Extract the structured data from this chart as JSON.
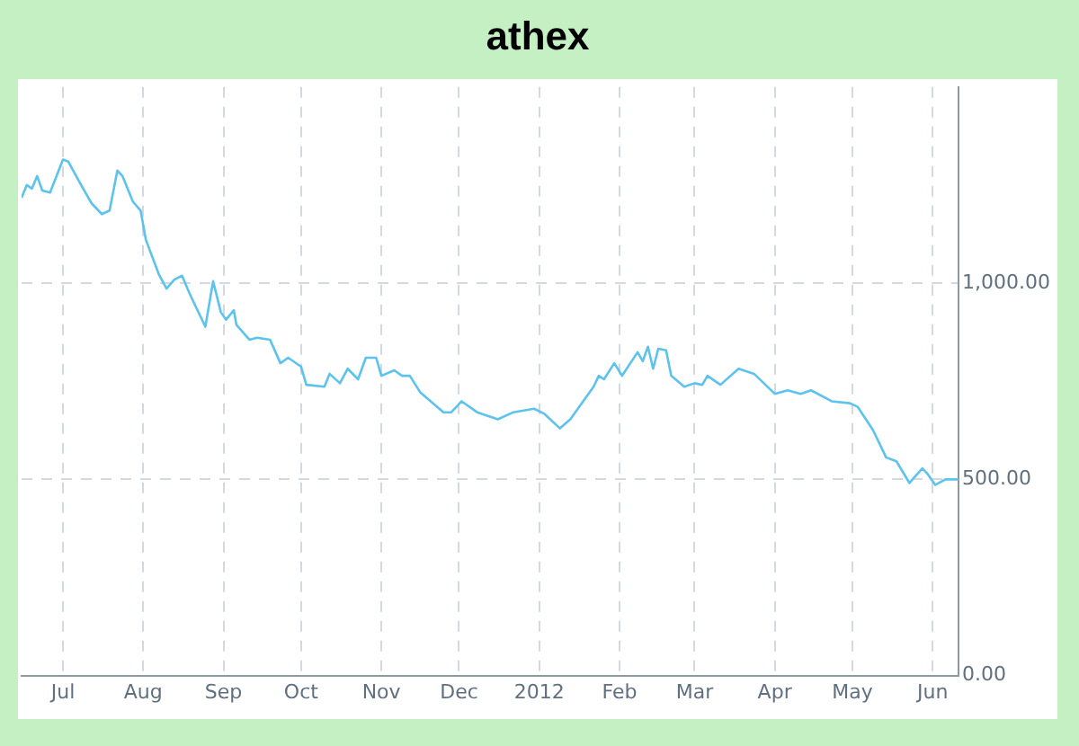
{
  "chart_data": {
    "type": "line",
    "title": "athex",
    "grid": true,
    "legend": false,
    "marker": "none",
    "line_style": "solid",
    "xlim": [
      "2011-06-15",
      "2012-06-11"
    ],
    "xticks": [
      {
        "value": "2011-07-01",
        "label": "Jul"
      },
      {
        "value": "2011-08-01",
        "label": "Aug"
      },
      {
        "value": "2011-09-01",
        "label": "Sep"
      },
      {
        "value": "2011-10-01",
        "label": "Oct"
      },
      {
        "value": "2011-11-01",
        "label": "Nov"
      },
      {
        "value": "2011-12-01",
        "label": "Dec"
      },
      {
        "value": "2012-01-01",
        "label": "2012"
      },
      {
        "value": "2012-02-01",
        "label": "Feb"
      },
      {
        "value": "2012-03-01",
        "label": "Mar"
      },
      {
        "value": "2012-04-01",
        "label": "Apr"
      },
      {
        "value": "2012-05-01",
        "label": "May"
      },
      {
        "value": "2012-06-01",
        "label": "Jun"
      }
    ],
    "ylim": [
      0,
      1500
    ],
    "yticks": [
      {
        "value": 0,
        "label": "0.00"
      },
      {
        "value": 500,
        "label": "500.00"
      },
      {
        "value": 1000,
        "label": "1,000.00"
      }
    ],
    "series": [
      {
        "color": "#5cc3ee",
        "x": [
          "2011-06-15",
          "2011-06-17",
          "2011-06-19",
          "2011-06-21",
          "2011-06-23",
          "2011-06-26",
          "2011-07-01",
          "2011-07-03",
          "2011-07-08",
          "2011-07-12",
          "2011-07-16",
          "2011-07-19",
          "2011-07-22",
          "2011-07-24",
          "2011-07-28",
          "2011-07-31",
          "2011-08-02",
          "2011-08-07",
          "2011-08-10",
          "2011-08-13",
          "2011-08-16",
          "2011-08-19",
          "2011-08-25",
          "2011-08-28",
          "2011-08-31",
          "2011-09-02",
          "2011-09-05",
          "2011-09-06",
          "2011-09-11",
          "2011-09-14",
          "2011-09-19",
          "2011-09-23",
          "2011-09-26",
          "2011-10-01",
          "2011-10-03",
          "2011-10-10",
          "2011-10-12",
          "2011-10-16",
          "2011-10-19",
          "2011-10-23",
          "2011-10-26",
          "2011-10-30",
          "2011-11-01",
          "2011-11-06",
          "2011-11-09",
          "2011-11-12",
          "2011-11-16",
          "2011-11-25",
          "2011-11-28",
          "2011-12-02",
          "2011-12-08",
          "2011-12-16",
          "2011-12-22",
          "2011-12-30",
          "2012-01-03",
          "2012-01-09",
          "2012-01-13",
          "2012-01-22",
          "2012-01-24",
          "2012-01-26",
          "2012-01-30",
          "2012-02-02",
          "2012-02-08",
          "2012-02-10",
          "2012-02-12",
          "2012-02-14",
          "2012-02-16",
          "2012-02-19",
          "2012-02-21",
          "2012-02-26",
          "2012-03-01",
          "2012-03-04",
          "2012-03-06",
          "2012-03-11",
          "2012-03-18",
          "2012-03-24",
          "2012-04-01",
          "2012-04-06",
          "2012-04-11",
          "2012-04-15",
          "2012-04-23",
          "2012-04-30",
          "2012-05-03",
          "2012-05-09",
          "2012-05-14",
          "2012-05-18",
          "2012-05-23",
          "2012-05-28",
          "2012-05-30",
          "2012-06-02",
          "2012-06-06",
          "2012-06-11"
        ],
        "values": [
          1218,
          1250,
          1241,
          1273,
          1236,
          1231,
          1315,
          1310,
          1250,
          1204,
          1176,
          1185,
          1287,
          1273,
          1208,
          1185,
          1111,
          1023,
          986,
          1009,
          1019,
          972,
          889,
          1005,
          926,
          907,
          931,
          894,
          856,
          861,
          856,
          796,
          810,
          787,
          741,
          736,
          769,
          745,
          782,
          755,
          810,
          810,
          764,
          778,
          764,
          764,
          722,
          671,
          671,
          699,
          671,
          653,
          671,
          680,
          667,
          630,
          653,
          736,
          764,
          755,
          796,
          764,
          824,
          801,
          838,
          782,
          833,
          829,
          764,
          736,
          745,
          741,
          764,
          741,
          782,
          769,
          718,
          727,
          718,
          727,
          699,
          694,
          685,
          625,
          556,
          546,
          491,
          528,
          514,
          486,
          500,
          500
        ]
      }
    ]
  }
}
